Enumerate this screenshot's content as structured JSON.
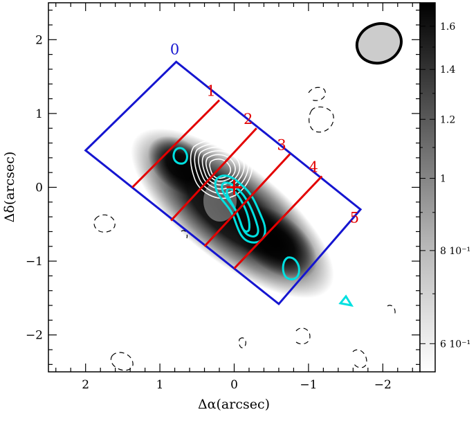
{
  "chart_data": {
    "type": "heatmap",
    "title": "",
    "xlabel": "Δα(arcsec)",
    "ylabel": "Δδ(arcsec)",
    "xlim": [
      2.5,
      -2.5
    ],
    "ylim": [
      -2.5,
      2.5
    ],
    "x_ticks": [
      2,
      1,
      0,
      -1,
      -2
    ],
    "x_tick_labels": [
      "2",
      "1",
      "0",
      "−1",
      "−2"
    ],
    "y_ticks": [
      -2,
      -1,
      0,
      1,
      2
    ],
    "y_tick_labels": [
      "−2",
      "−1",
      "0",
      "1",
      "2"
    ],
    "image": {
      "description": "grayscale intensity of an elongated source",
      "center": [
        0.05,
        -0.35
      ],
      "position_angle_deg": 36,
      "extent_arcsec": [
        1.2,
        3.0
      ]
    },
    "colorbar": {
      "scale": "log",
      "range": [
        0.55,
        1.72
      ],
      "ticks": [
        0.6,
        0.8,
        1.0,
        1.2,
        1.4,
        1.6
      ],
      "tick_labels": [
        "6 10⁻¹",
        "8 10⁻¹",
        "1",
        "1.2",
        "1.4",
        "1.6"
      ],
      "colors": [
        "#ffffff",
        "#000000"
      ]
    },
    "cuts": {
      "color": "#e30000",
      "labels": [
        "1",
        "2",
        "3",
        "4"
      ],
      "segments": [
        [
          [
            1.37,
            0.0
          ],
          [
            0.2,
            1.18
          ]
        ],
        [
          [
            0.85,
            -0.45
          ],
          [
            -0.3,
            0.8
          ]
        ],
        [
          [
            0.4,
            -0.8
          ],
          [
            -0.75,
            0.45
          ]
        ],
        [
          [
            0.0,
            -1.1
          ],
          [
            -1.18,
            0.15
          ]
        ]
      ]
    },
    "strip_box": {
      "color": "#1515d0",
      "corners": [
        [
          0.78,
          1.7
        ],
        [
          -1.7,
          -0.3
        ],
        [
          -0.6,
          -1.58
        ],
        [
          2.0,
          0.5
        ]
      ],
      "labels": [
        "0",
        "5"
      ]
    },
    "marker": {
      "x": 0.0,
      "y": 0.0,
      "symbol": "+",
      "color": "#e30000"
    },
    "cyan_contours_color": "#00e0e0",
    "white_contours_color": "#ffffff",
    "negative_contours_color": "#000000",
    "beam": {
      "x": -1.95,
      "y": 1.95,
      "major": 0.55,
      "minor": 0.5,
      "fill": "#cccccc"
    }
  }
}
